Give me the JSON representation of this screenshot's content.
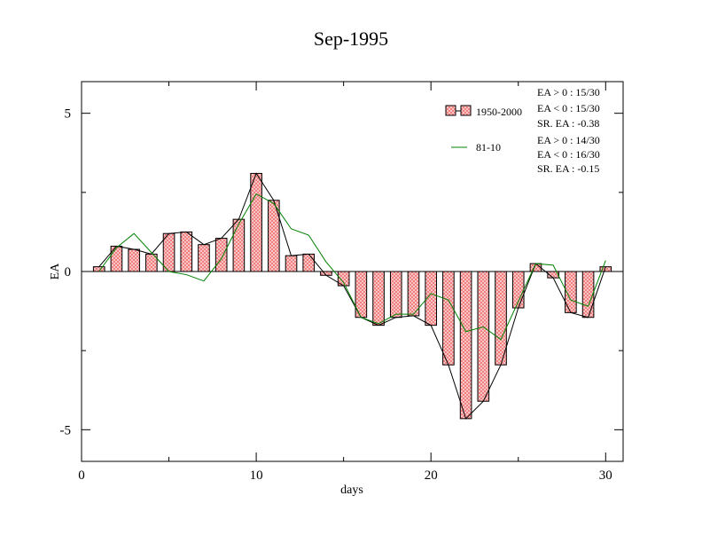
{
  "chart_data": {
    "type": "bar",
    "title": "Sep-1995",
    "xlabel": "days",
    "ylabel": "EA",
    "xlim": [
      0,
      31
    ],
    "ylim": [
      -6,
      6
    ],
    "x_ticks": [
      0,
      10,
      20,
      30
    ],
    "x_tick_labels": [
      "0",
      "10",
      "20",
      "30"
    ],
    "y_ticks": [
      -5,
      0,
      5
    ],
    "y_tick_labels": [
      "-5",
      "0",
      "5"
    ],
    "grid": false,
    "legend_position": "top-right",
    "x": [
      1,
      2,
      3,
      4,
      5,
      6,
      7,
      8,
      9,
      10,
      11,
      12,
      13,
      14,
      15,
      16,
      17,
      18,
      19,
      20,
      21,
      22,
      23,
      24,
      25,
      26,
      27,
      28,
      29,
      30
    ],
    "series": [
      {
        "name": "1950-2000",
        "type": "bar",
        "color": "#f08080",
        "values": [
          0.15,
          0.8,
          0.7,
          0.55,
          1.2,
          1.25,
          0.85,
          1.05,
          1.65,
          3.1,
          2.25,
          0.5,
          0.55,
          -0.12,
          -0.45,
          -1.45,
          -1.7,
          -1.45,
          -1.4,
          -1.7,
          -2.95,
          -4.65,
          -4.1,
          -2.95,
          -1.15,
          0.25,
          -0.2,
          -1.3,
          -1.45,
          0.15
        ],
        "stats": [
          "EA > 0 : 15/30",
          "EA < 0 : 15/30",
          "SR. EA : -0.38"
        ]
      },
      {
        "name": "81-10",
        "type": "line",
        "color": "#008000",
        "values": [
          0.0,
          0.75,
          1.2,
          0.6,
          0.0,
          -0.1,
          -0.3,
          0.4,
          1.5,
          2.45,
          2.15,
          1.35,
          1.15,
          0.3,
          -0.35,
          -1.45,
          -1.65,
          -1.35,
          -1.35,
          -0.7,
          -0.9,
          -1.9,
          -1.75,
          -2.15,
          -0.95,
          0.25,
          0.2,
          -0.9,
          -1.1,
          0.35
        ],
        "stats": [
          "EA > 0 : 14/30",
          "EA < 0 : 16/30",
          "SR. EA : -0.15"
        ]
      }
    ]
  }
}
